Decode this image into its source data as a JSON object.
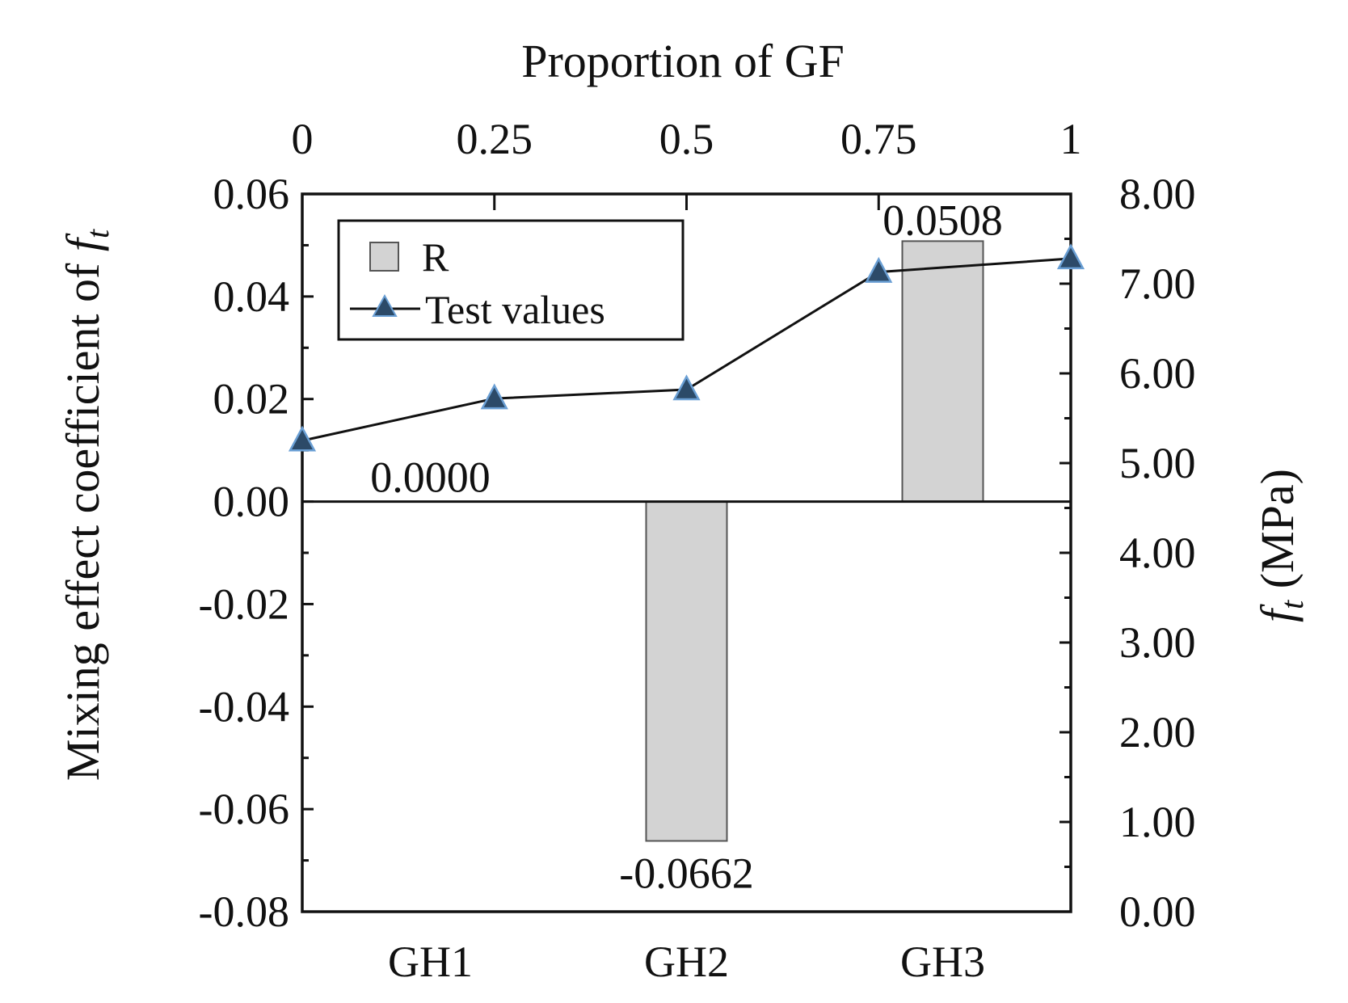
{
  "chart_data": {
    "type": "bar",
    "top_axis": {
      "label": "Proportion of GF",
      "ticks": [
        "0",
        "0.25",
        "0.5",
        "0.75",
        "1"
      ],
      "range": [
        0,
        1
      ]
    },
    "left_axis": {
      "label_main": "Mixing effect coefficient of ",
      "label_sym": "f",
      "label_sub": "t",
      "range": [
        -0.08,
        0.06
      ],
      "ticks": [
        "0.06",
        "0.04",
        "0.02",
        "0.00",
        "-0.02",
        "-0.04",
        "-0.06",
        "-0.08"
      ]
    },
    "right_axis": {
      "label_sym": "f",
      "label_sub": "t",
      "label_unit": " (MPa)",
      "range": [
        0,
        8
      ],
      "ticks": [
        "8.00",
        "7.00",
        "6.00",
        "5.00",
        "4.00",
        "3.00",
        "2.00",
        "1.00",
        "0.00"
      ]
    },
    "categories": [
      "GH1",
      "GH2",
      "GH3"
    ],
    "bars": {
      "name": "R",
      "values": [
        0.0,
        -0.0662,
        0.0508
      ],
      "labels": [
        "0.0000",
        "-0.0662",
        "0.0508"
      ],
      "color": "#d3d3d3",
      "edge_color": "#555555"
    },
    "line": {
      "name": "Test values",
      "x": [
        0,
        0.25,
        0.5,
        0.75,
        1
      ],
      "y": [
        5.25,
        5.72,
        5.82,
        7.13,
        7.28
      ],
      "marker_color": "#2c4a68",
      "marker_edge": "#6a9fd4",
      "line_color": "#111111"
    },
    "legend": {
      "placement": "top-left",
      "entries": [
        "R",
        "Test values"
      ]
    },
    "grid": false
  }
}
